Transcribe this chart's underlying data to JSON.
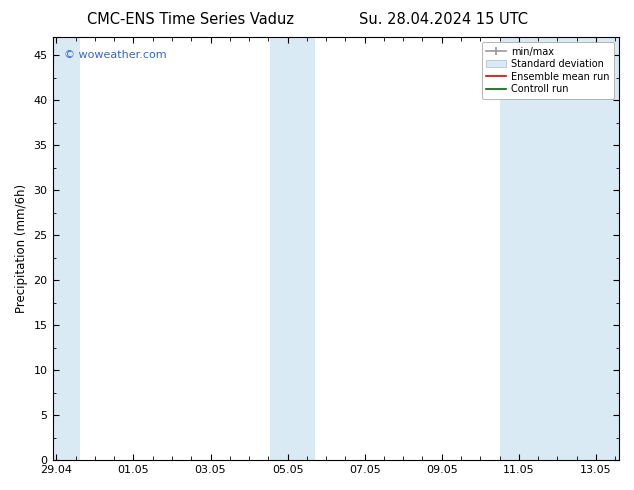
{
  "title_left": "CMC-ENS Time Series Vaduz",
  "title_right": "Su. 28.04.2024 15 UTC",
  "ylabel": "Precipitation (mm/6h)",
  "watermark": "© woweather.com",
  "watermark_color": "#3366cc",
  "ylim": [
    0,
    47
  ],
  "yticks": [
    0,
    5,
    10,
    15,
    20,
    25,
    30,
    35,
    40,
    45
  ],
  "xtick_labels": [
    "29.04",
    "01.05",
    "03.05",
    "05.05",
    "07.05",
    "09.05",
    "11.05",
    "13.05"
  ],
  "xtick_positions_days": [
    0,
    2,
    4,
    6,
    8,
    10,
    12,
    14
  ],
  "xlim": [
    -0.1,
    14.6
  ],
  "shaded_regions": [
    {
      "start_day": -0.1,
      "end_day": 0.6,
      "color": "#daeaf5"
    },
    {
      "start_day": 5.55,
      "end_day": 6.7,
      "color": "#daeaf5"
    },
    {
      "start_day": 11.5,
      "end_day": 14.6,
      "color": "#daeaf5"
    }
  ],
  "bg_color": "#ffffff",
  "plot_bg_color": "#ffffff",
  "legend_entries": [
    "min/max",
    "Standard deviation",
    "Ensemble mean run",
    "Controll run"
  ],
  "legend_colors_line": [
    "#999999",
    "#bbccdd",
    "#dd0000",
    "#006600"
  ],
  "title_fontsize": 10.5,
  "tick_fontsize": 8,
  "label_fontsize": 8.5
}
